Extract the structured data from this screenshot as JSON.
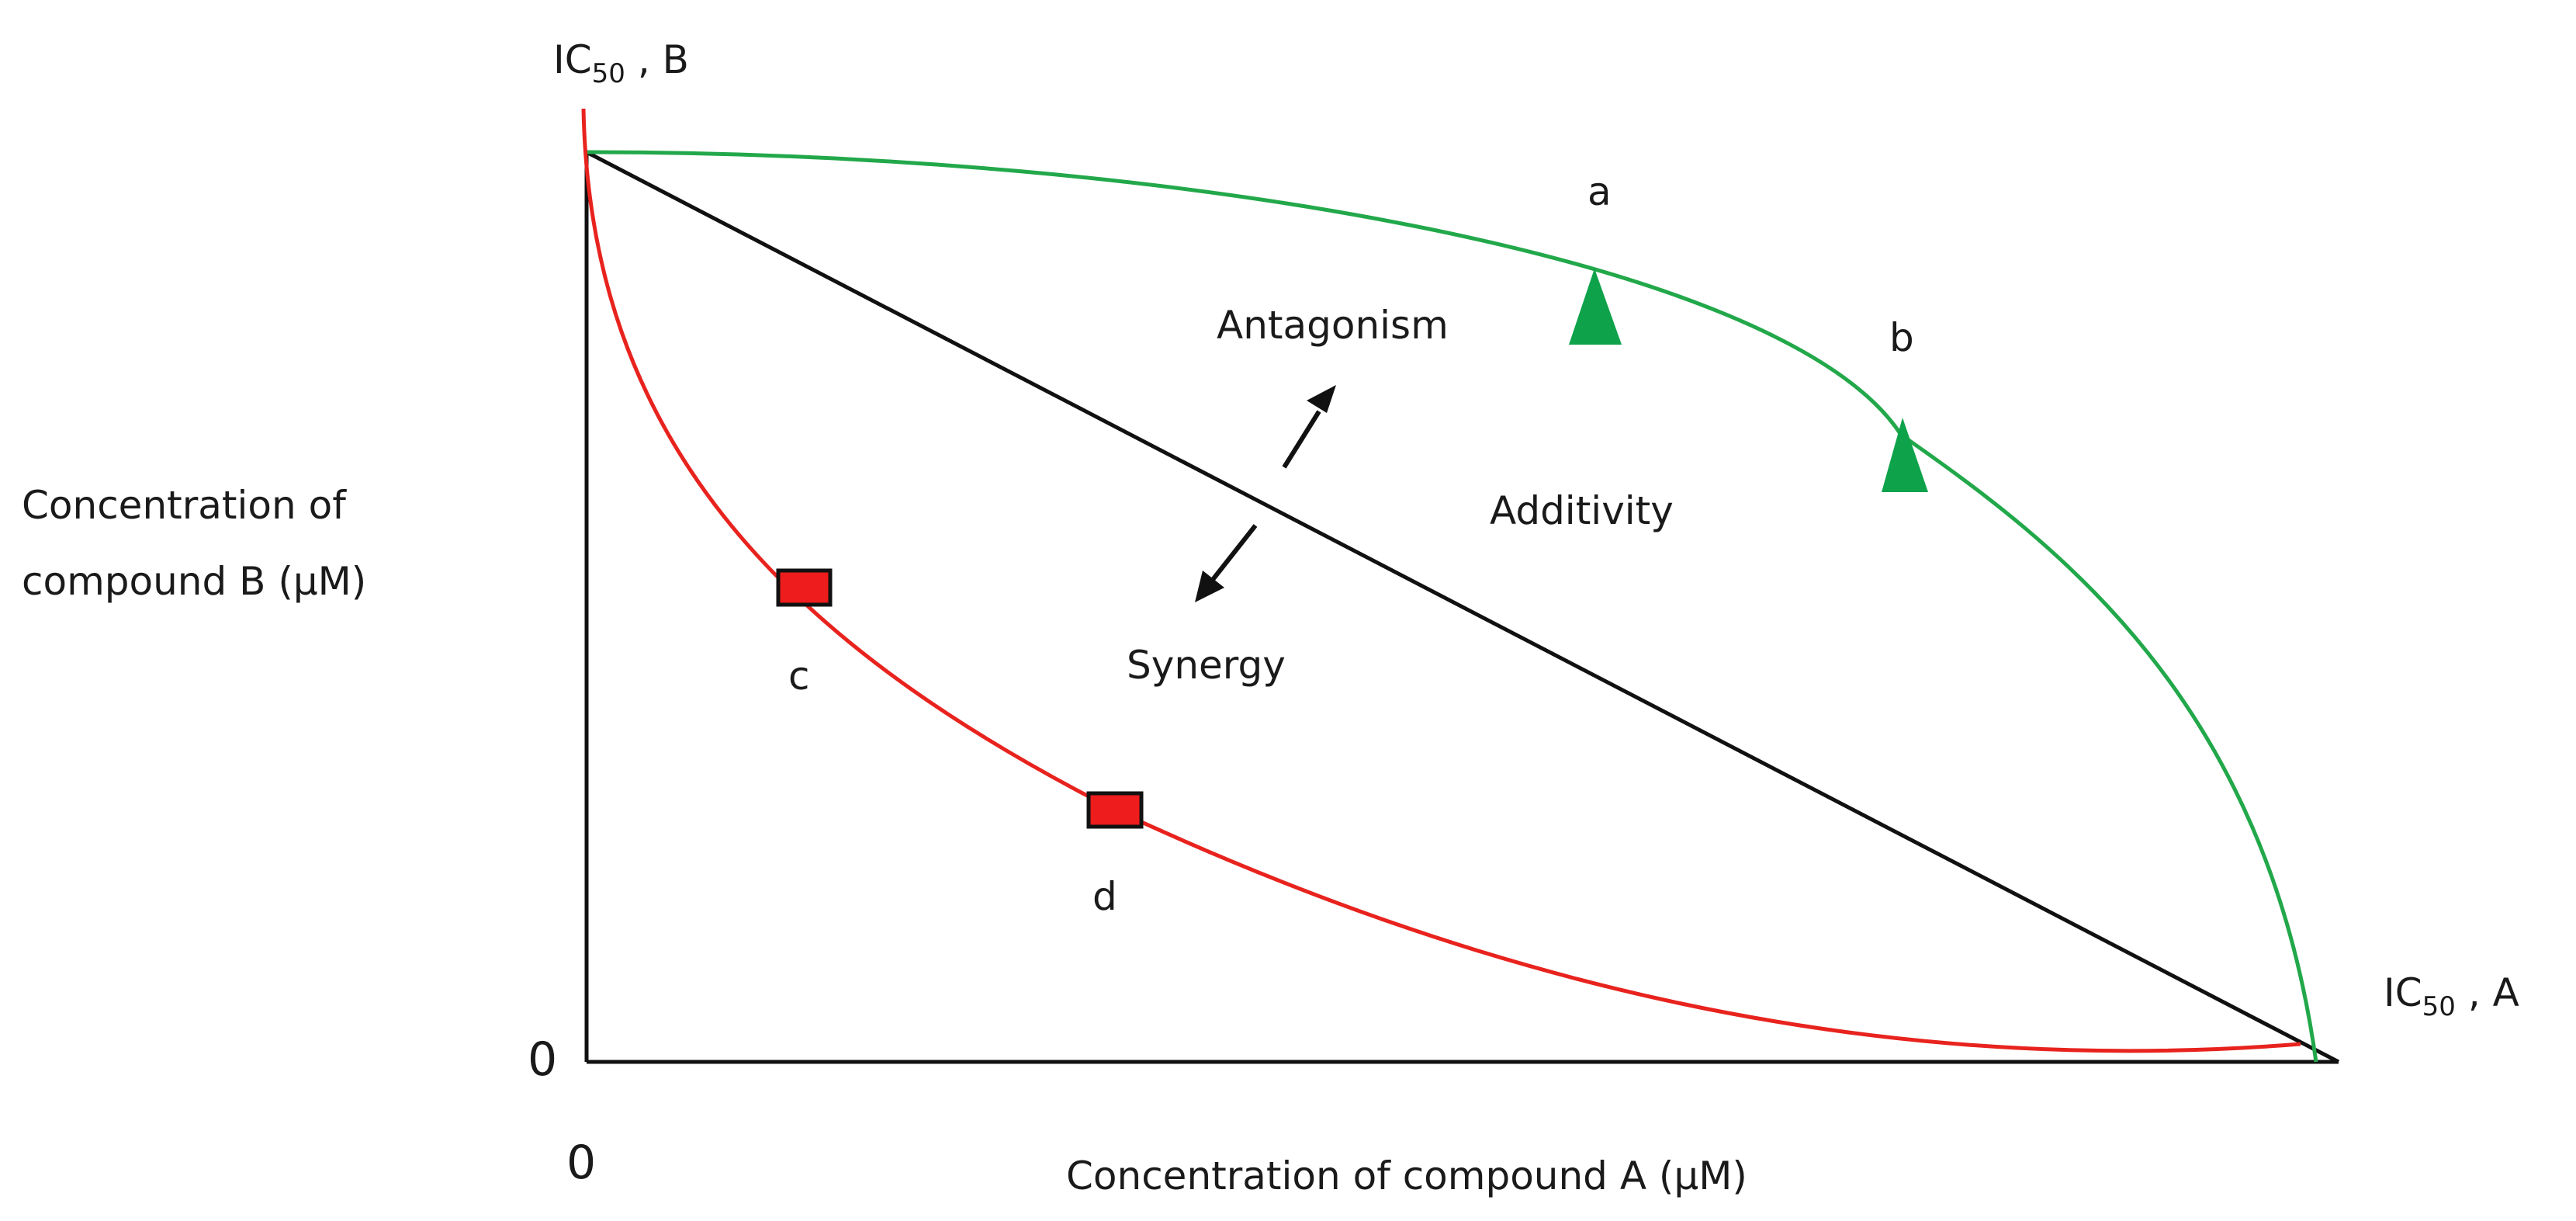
{
  "axes": {
    "y_top_label_main": "IC",
    "y_top_label_sub": "50",
    "y_top_label_suffix": " ,  B",
    "x_end_label_main": "IC",
    "x_end_label_sub": "50",
    "x_end_label_suffix": " ,  A",
    "y_zero": "0",
    "x_zero": "0",
    "y_title_line1": "Concentration of",
    "y_title_line2": "compound  B (μM)",
    "x_title": "Concentration of compound A (μM)"
  },
  "regions": {
    "antagonism": "Antagonism",
    "additivity": "Additivity",
    "synergy": "Synergy"
  },
  "points": {
    "a": "a",
    "b": "b",
    "c": "c",
    "d": "d"
  },
  "colors": {
    "axis": "#111111",
    "additivity_line": "#111111",
    "antagonism_curve": "#22a84a",
    "synergy_curve": "#e8231e",
    "triangle_fill": "#0ea24a",
    "square_fill": "#ee1c1c",
    "square_stroke": "#111111"
  }
}
